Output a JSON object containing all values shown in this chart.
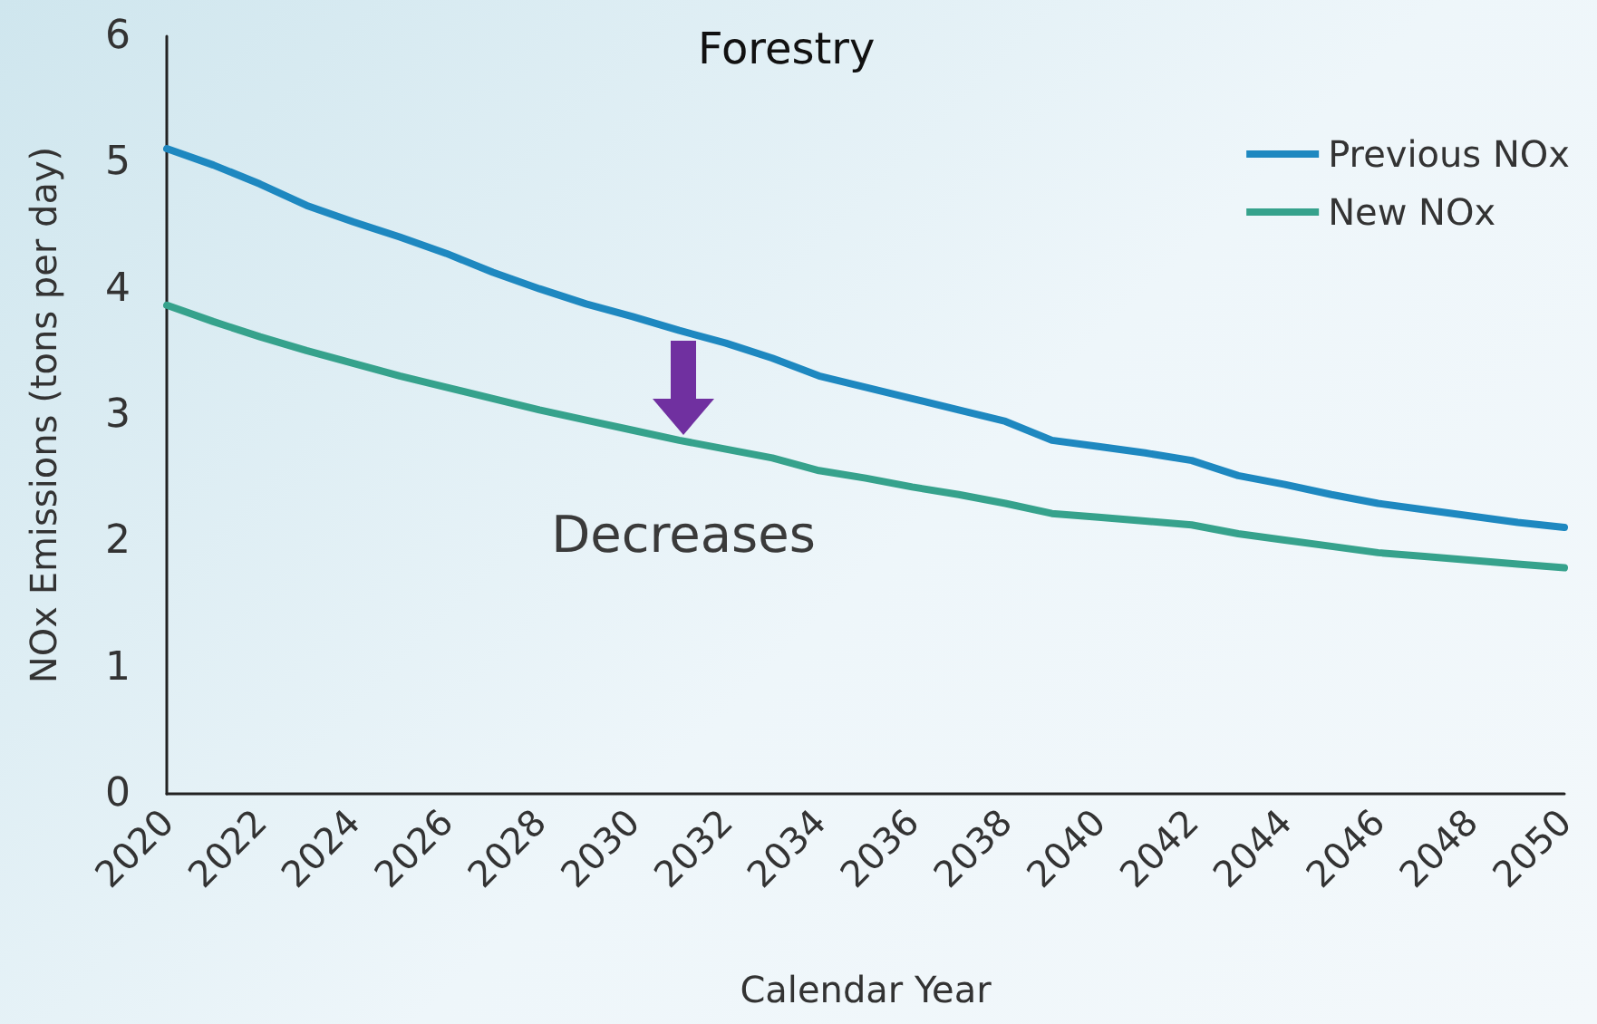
{
  "chart_data": {
    "type": "line",
    "title": "Forestry",
    "xlabel": "Calendar Year",
    "ylabel": "NOx Emissions (tons per day)",
    "x": [
      2020,
      2021,
      2022,
      2023,
      2024,
      2025,
      2026,
      2027,
      2028,
      2029,
      2030,
      2031,
      2032,
      2033,
      2034,
      2035,
      2036,
      2037,
      2038,
      2039,
      2040,
      2041,
      2042,
      2043,
      2044,
      2045,
      2046,
      2047,
      2048,
      2049,
      2050
    ],
    "series": [
      {
        "name": "Previous NOx",
        "color": "#1e88c0",
        "values": [
          5.11,
          4.98,
          4.83,
          4.66,
          4.53,
          4.41,
          4.28,
          4.13,
          4.0,
          3.88,
          3.78,
          3.67,
          3.57,
          3.45,
          3.31,
          3.22,
          3.13,
          3.04,
          2.95,
          2.8,
          2.75,
          2.7,
          2.64,
          2.52,
          2.45,
          2.37,
          2.3,
          2.25,
          2.2,
          2.15,
          2.11
        ]
      },
      {
        "name": "New NOx",
        "color": "#36a28c",
        "values": [
          3.87,
          3.74,
          3.62,
          3.51,
          3.41,
          3.31,
          3.22,
          3.13,
          3.04,
          2.96,
          2.88,
          2.8,
          2.73,
          2.66,
          2.56,
          2.5,
          2.43,
          2.37,
          2.3,
          2.22,
          2.19,
          2.16,
          2.13,
          2.06,
          2.01,
          1.96,
          1.91,
          1.88,
          1.85,
          1.82,
          1.79
        ]
      }
    ],
    "xlim": [
      2020,
      2050
    ],
    "xticks": [
      2020,
      2022,
      2024,
      2026,
      2028,
      2030,
      2032,
      2034,
      2036,
      2038,
      2040,
      2042,
      2044,
      2046,
      2048,
      2050
    ],
    "ylim": [
      0,
      6
    ],
    "yticks": [
      0,
      1,
      2,
      3,
      4,
      5,
      6
    ],
    "annotations": [
      "Decreases"
    ],
    "grid": false,
    "legend": "top right",
    "marker": "none",
    "line_style": "solid"
  }
}
